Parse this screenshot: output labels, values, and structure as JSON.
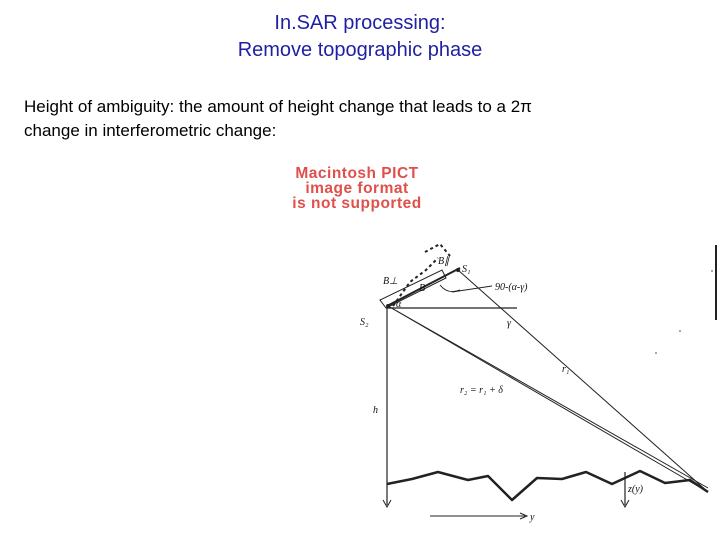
{
  "slide": {
    "title_line1": "In.SAR processing:",
    "title_line2": "Remove topographic phase",
    "text_line1": "Height of ambiguity: the amount of height change that leads to a 2π",
    "text_line2": "change in interferometric change:",
    "pict_line1": "Macintosh PICT",
    "pict_line2": "image format",
    "pict_line3": "is not supported",
    "title_color": "#1f1fa3",
    "pict_color": "#e0504a"
  },
  "diagram": {
    "label_B_parallel": "B∥",
    "label_S1": "S₁",
    "label_B_perp": "B⊥",
    "label_B": "B",
    "label_alpha": "α",
    "label_angle": "90-(α-γ)",
    "label_S2": "S₂",
    "label_gamma": "γ",
    "label_r1": "r₁",
    "label_r2": "r₂ = r₁ + δ",
    "label_h": "h",
    "label_zy": "z(y)",
    "label_y": "y"
  }
}
